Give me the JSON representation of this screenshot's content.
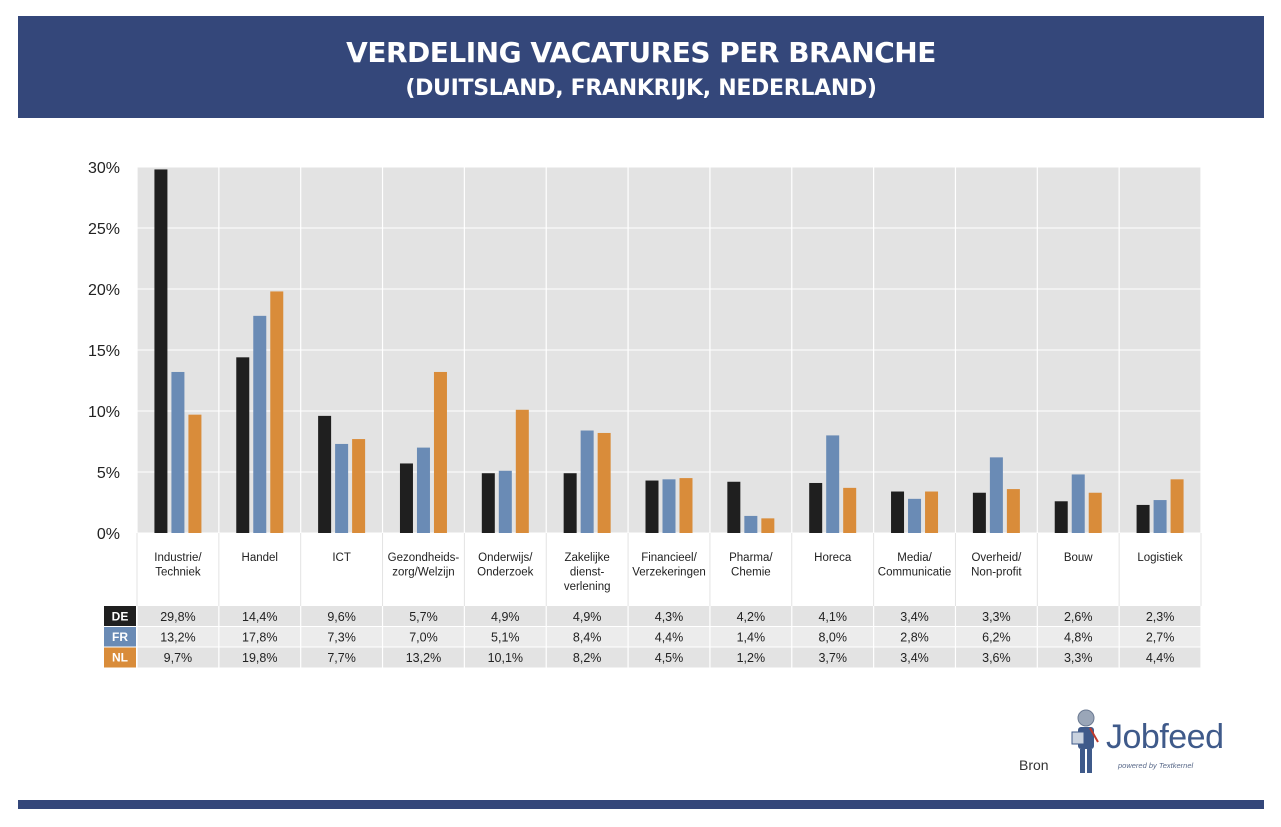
{
  "header": {
    "title": "VERDELING VACATURES PER BRANCHE",
    "subtitle": "(DUITSLAND, FRANKRIJK, NEDERLAND)"
  },
  "footer": {
    "source_label": "Bron",
    "logo_text": "Jobfeed",
    "logo_tagline": "powered by Textkernel"
  },
  "chart_data": {
    "type": "bar",
    "title": "VERDELING VACATURES PER BRANCHE",
    "subtitle": "(DUITSLAND, FRANKRIJK, NEDERLAND)",
    "ylim": [
      0,
      30
    ],
    "y_ticks": [
      "0%",
      "5%",
      "10%",
      "15%",
      "20%",
      "25%",
      "30%"
    ],
    "grid": true,
    "categories": [
      [
        "Industrie/",
        "Techniek"
      ],
      [
        "Handel"
      ],
      [
        "ICT"
      ],
      [
        "Gezondheids-",
        "zorg/Welzijn"
      ],
      [
        "Onderwijs/",
        "Onderzoek"
      ],
      [
        "Zakelijke",
        "dienst-",
        "verlening"
      ],
      [
        "Financieel/",
        "Verzekeringen"
      ],
      [
        "Pharma/",
        "Chemie"
      ],
      [
        "Horeca"
      ],
      [
        "Media/",
        "Communicatie"
      ],
      [
        "Overheid/",
        "Non-profit"
      ],
      [
        "Bouw"
      ],
      [
        "Logistiek"
      ]
    ],
    "series": [
      {
        "name": "DE",
        "color": "#1f1f1f",
        "values": [
          29.8,
          14.4,
          9.6,
          5.7,
          4.9,
          4.9,
          4.3,
          4.2,
          4.1,
          3.4,
          3.3,
          2.6,
          2.3
        ],
        "labels": [
          "29,8%",
          "14,4%",
          "9,6%",
          "5,7%",
          "4,9%",
          "4,9%",
          "4,3%",
          "4,2%",
          "4,1%",
          "3,4%",
          "3,3%",
          "2,6%",
          "2,3%"
        ]
      },
      {
        "name": "FR",
        "color": "#6a8bb5",
        "values": [
          13.2,
          17.8,
          7.3,
          7.0,
          5.1,
          8.4,
          4.4,
          1.4,
          8.0,
          2.8,
          6.2,
          4.8,
          2.7
        ],
        "labels": [
          "13,2%",
          "17,8%",
          "7,3%",
          "7,0%",
          "5,1%",
          "8,4%",
          "4,4%",
          "1,4%",
          "8,0%",
          "2,8%",
          "6,2%",
          "4,8%",
          "2,7%"
        ]
      },
      {
        "name": "NL",
        "color": "#d98c3a",
        "values": [
          9.7,
          19.8,
          7.7,
          13.2,
          10.1,
          8.2,
          4.5,
          1.2,
          3.7,
          3.4,
          3.6,
          3.3,
          4.4
        ],
        "labels": [
          "9,7%",
          "19,8%",
          "7,7%",
          "13,2%",
          "10,1%",
          "8,2%",
          "4,5%",
          "1,2%",
          "3,7%",
          "3,4%",
          "3,6%",
          "3,3%",
          "4,4%"
        ]
      }
    ]
  }
}
